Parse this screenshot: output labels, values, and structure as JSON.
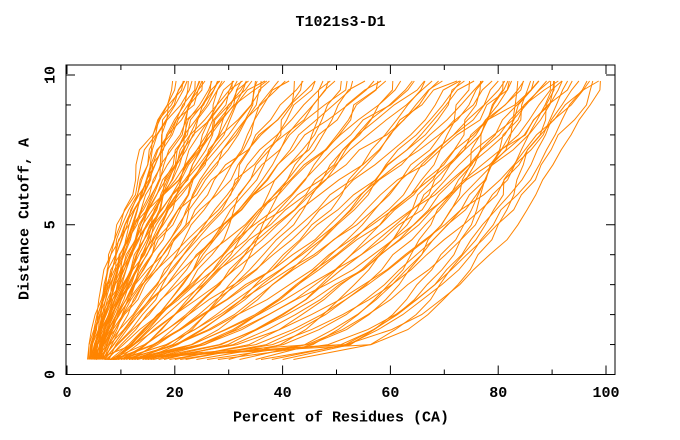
{
  "chart_data": {
    "type": "line",
    "title": "T1021s3-D1",
    "xlabel": "Percent of Residues (CA)",
    "ylabel": "Distance Cutoff, A",
    "xlim": [
      0,
      101.8
    ],
    "ylim": [
      0,
      10.33
    ],
    "x_major_ticks": [
      0,
      20,
      40,
      60,
      80,
      100
    ],
    "x_minor_ticks": [
      10,
      30,
      50,
      70,
      90
    ],
    "y_major_ticks": [
      0,
      5,
      10
    ],
    "y_minor_ticks": [
      1,
      2,
      3,
      4,
      6,
      7,
      8,
      9
    ],
    "grid": false,
    "legend": "none",
    "series_color": "#ff8400",
    "axis_color": "#000000",
    "background_color": "#ffffff",
    "curve_y_start": 0.5,
    "curve_y_step": 0.5,
    "curve_y_top": 9.8,
    "jitter_seed": 1021,
    "curves_format": [
      "x_at_y0.5",
      "x_at_ytop",
      "shape_exponent",
      "wobble"
    ],
    "curves": [
      [
        3.8,
        19.5,
        1.35,
        0.5
      ],
      [
        4.2,
        20,
        1.2,
        0.45
      ],
      [
        4.0,
        21,
        1.45,
        0.5
      ],
      [
        4.4,
        21.5,
        1.1,
        0.55
      ],
      [
        4.3,
        22,
        1.3,
        0.5
      ],
      [
        4.6,
        22.5,
        1.5,
        0.45
      ],
      [
        4.1,
        23,
        1.25,
        0.5
      ],
      [
        4.8,
        23.5,
        1.4,
        0.55
      ],
      [
        4.5,
        24,
        1.15,
        0.5
      ],
      [
        5.0,
        24.5,
        1.3,
        0.45
      ],
      [
        4.3,
        25,
        1.5,
        0.5
      ],
      [
        5.2,
        25.5,
        1.2,
        0.55
      ],
      [
        4.7,
        26,
        1.35,
        0.5
      ],
      [
        5.4,
        26.5,
        1.08,
        0.45
      ],
      [
        4.9,
        27,
        1.45,
        0.5
      ],
      [
        5.1,
        27.5,
        1.25,
        0.55
      ],
      [
        5.5,
        28,
        1.35,
        0.5
      ],
      [
        4.6,
        28.5,
        1.18,
        0.45
      ],
      [
        5.3,
        29,
        1.4,
        0.5
      ],
      [
        5.7,
        29.5,
        1.12,
        0.55
      ],
      [
        5.0,
        30,
        1.3,
        0.5
      ],
      [
        5.8,
        30.5,
        1.45,
        0.45
      ],
      [
        5.2,
        31,
        1.2,
        0.5
      ],
      [
        6.0,
        31.5,
        1.35,
        0.55
      ],
      [
        5.5,
        32,
        1.1,
        0.5
      ],
      [
        6.2,
        32.5,
        1.4,
        0.45
      ],
      [
        5.8,
        33,
        1.25,
        0.5
      ],
      [
        6.4,
        33.5,
        1.35,
        0.55
      ],
      [
        6.0,
        34,
        1.15,
        0.5
      ],
      [
        6.6,
        34.5,
        1.3,
        0.45
      ],
      [
        6.1,
        35,
        1.45,
        0.5
      ],
      [
        6.8,
        35.5,
        1.2,
        0.55
      ],
      [
        6.3,
        36,
        1.35,
        0.5
      ],
      [
        7.0,
        36.5,
        1.08,
        0.45
      ],
      [
        6.5,
        37,
        1.25,
        0.5
      ],
      [
        5.9,
        22.8,
        1.55,
        0.5
      ],
      [
        4.5,
        38,
        1.0,
        0.6
      ],
      [
        5.0,
        39.5,
        0.85,
        0.5
      ],
      [
        6.0,
        41,
        1.1,
        0.6
      ],
      [
        7.0,
        42.5,
        0.9,
        0.5
      ],
      [
        5.5,
        44,
        1.2,
        0.6
      ],
      [
        8.0,
        45.5,
        0.8,
        0.5
      ],
      [
        6.5,
        47,
        1.05,
        0.6
      ],
      [
        9.0,
        48.5,
        0.88,
        0.5
      ],
      [
        5.2,
        50,
        1.15,
        0.6
      ],
      [
        10.0,
        51.5,
        0.78,
        0.5
      ],
      [
        7.5,
        53,
        1.0,
        0.6
      ],
      [
        11.0,
        54.5,
        0.85,
        0.5
      ],
      [
        6.2,
        56,
        1.1,
        0.6
      ],
      [
        12.0,
        57.5,
        0.8,
        0.5
      ],
      [
        8.5,
        59,
        0.95,
        0.6
      ],
      [
        13.0,
        60.5,
        0.72,
        0.5
      ],
      [
        6.8,
        62,
        1.05,
        0.6
      ],
      [
        10.5,
        63.5,
        0.85,
        0.5
      ],
      [
        9.5,
        65,
        0.95,
        0.6
      ],
      [
        14.0,
        66.5,
        0.7,
        0.5
      ],
      [
        7.2,
        68,
        1.0,
        0.6
      ],
      [
        11.5,
        69.5,
        0.82,
        0.5
      ],
      [
        8.2,
        71,
        0.9,
        0.6
      ],
      [
        15.0,
        72.5,
        0.68,
        0.5
      ],
      [
        5.8,
        40,
        1.3,
        0.5
      ],
      [
        6.4,
        46,
        1.25,
        0.5
      ],
      [
        7.8,
        52,
        1.18,
        0.5
      ],
      [
        6.6,
        58,
        1.12,
        0.5
      ],
      [
        9.2,
        64,
        1.05,
        0.5
      ],
      [
        8.8,
        70,
        1.0,
        0.5
      ],
      [
        5.4,
        43,
        0.6,
        0.6
      ],
      [
        12.5,
        49,
        0.55,
        0.6
      ],
      [
        8.0,
        73,
        0.8,
        0.6
      ],
      [
        12.0,
        74,
        0.7,
        0.5
      ],
      [
        9.0,
        75,
        0.75,
        0.6
      ],
      [
        15.0,
        76,
        0.6,
        0.5
      ],
      [
        10.0,
        77,
        0.72,
        0.6
      ],
      [
        18.0,
        78,
        0.55,
        0.5
      ],
      [
        8.5,
        79,
        0.78,
        0.6
      ],
      [
        14.0,
        80,
        0.62,
        0.5
      ],
      [
        11.0,
        81,
        0.7,
        0.6
      ],
      [
        20.0,
        82,
        0.52,
        0.5
      ],
      [
        9.5,
        83,
        0.74,
        0.6
      ],
      [
        16.0,
        84,
        0.58,
        0.5
      ],
      [
        12.5,
        85,
        0.66,
        0.6
      ],
      [
        22.0,
        86,
        0.5,
        0.5
      ],
      [
        10.5,
        87,
        0.7,
        0.6
      ],
      [
        17.0,
        88,
        0.56,
        0.5
      ],
      [
        13.0,
        89,
        0.62,
        0.6
      ],
      [
        24.0,
        90,
        0.48,
        0.5
      ],
      [
        11.5,
        91,
        0.66,
        0.6
      ],
      [
        19.0,
        92,
        0.52,
        0.5
      ],
      [
        14.5,
        93,
        0.6,
        0.6
      ],
      [
        26.0,
        94,
        0.45,
        0.5
      ],
      [
        12.0,
        95,
        0.64,
        0.6
      ],
      [
        21.0,
        96,
        0.5,
        0.5
      ],
      [
        15.5,
        97,
        0.55,
        0.6
      ],
      [
        28.0,
        98,
        0.42,
        0.5
      ],
      [
        30.0,
        78,
        0.55,
        0.5
      ],
      [
        35.0,
        82,
        0.5,
        0.5
      ],
      [
        40.0,
        86,
        0.45,
        0.5
      ],
      [
        42.0,
        90,
        0.42,
        0.5
      ],
      [
        38.0,
        94,
        0.48,
        0.5
      ],
      [
        32.0,
        88,
        0.52,
        0.5
      ],
      [
        36.0,
        96,
        0.45,
        0.5
      ],
      [
        7.5,
        85,
        0.2,
        0.5
      ],
      [
        8.0,
        90,
        0.18,
        0.5
      ],
      [
        7.0,
        80,
        0.22,
        0.5
      ],
      [
        8.5,
        98.3,
        0.25,
        0.5
      ]
    ]
  }
}
